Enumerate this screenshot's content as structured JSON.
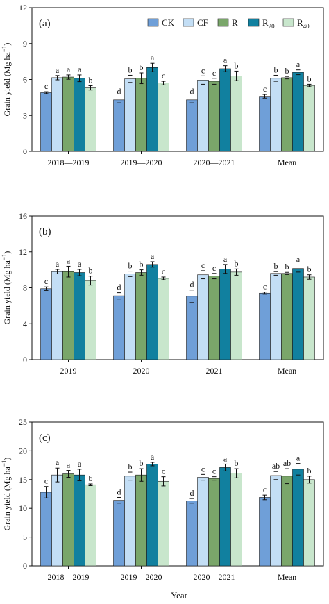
{
  "legend": [
    {
      "label": "CK",
      "sub": "",
      "color": "#6f9fd8"
    },
    {
      "label": "CF",
      "sub": "",
      "color": "#c3def5"
    },
    {
      "label": "R",
      "sub": "",
      "color": "#7aa66a"
    },
    {
      "label": "R",
      "sub": "20",
      "color": "#11809f"
    },
    {
      "label": "R",
      "sub": "40",
      "color": "#c8e6cc"
    }
  ],
  "x_axis_title": "Year",
  "chart_data": [
    {
      "type": "bar",
      "panel_label": "(a)",
      "ylabel": "Grain yield",
      "ylabel_unit": "(Mg ha",
      "ylabel_exp": "−1",
      "ylabel_close": ")",
      "ylim": [
        0,
        12
      ],
      "yticks": [
        0,
        3,
        6,
        9,
        12
      ],
      "categories": [
        "2018—2019",
        "2019—2020",
        "2020—2021",
        "Mean"
      ],
      "series": [
        {
          "name": "CK",
          "values": [
            4.9,
            4.3,
            4.3,
            4.6
          ],
          "errors": [
            0.08,
            0.25,
            0.25,
            0.15
          ],
          "letters": [
            "c",
            "d",
            "d",
            "c"
          ]
        },
        {
          "name": "CF",
          "values": [
            6.15,
            6.05,
            5.95,
            6.1
          ],
          "errors": [
            0.18,
            0.3,
            0.35,
            0.25
          ],
          "letters": [
            "a",
            "b",
            "c",
            "b"
          ]
        },
        {
          "name": "R",
          "values": [
            6.2,
            6.1,
            5.85,
            6.15
          ],
          "errors": [
            0.18,
            0.45,
            0.25,
            0.1
          ],
          "letters": [
            "a",
            "b",
            "c",
            "b"
          ]
        },
        {
          "name": "R20",
          "values": [
            6.1,
            7.0,
            6.9,
            6.6
          ],
          "errors": [
            0.28,
            0.35,
            0.25,
            0.2
          ],
          "letters": [
            "a",
            "a",
            "a",
            "a"
          ]
        },
        {
          "name": "R40",
          "values": [
            5.3,
            5.7,
            6.3,
            5.5
          ],
          "errors": [
            0.18,
            0.15,
            0.4,
            0.1
          ],
          "letters": [
            "b",
            "c",
            "b",
            "b"
          ]
        }
      ]
    },
    {
      "type": "bar",
      "panel_label": "(b)",
      "ylabel": "Grain yield",
      "ylabel_unit": "(Mg ha",
      "ylabel_exp": "−1",
      "ylabel_close": ")",
      "ylim": [
        0,
        16
      ],
      "yticks": [
        0,
        4,
        8,
        12,
        16
      ],
      "categories": [
        "2019",
        "2020",
        "2021",
        "Mean"
      ],
      "series": [
        {
          "name": "CK",
          "values": [
            7.9,
            7.1,
            7.05,
            7.4
          ],
          "errors": [
            0.2,
            0.35,
            0.7,
            0.12
          ],
          "letters": [
            "c",
            "d",
            "d",
            "c"
          ]
        },
        {
          "name": "CF",
          "values": [
            9.8,
            9.55,
            9.45,
            9.6
          ],
          "errors": [
            0.25,
            0.3,
            0.45,
            0.2
          ],
          "letters": [
            "a",
            "b",
            "c",
            "b"
          ]
        },
        {
          "name": "R",
          "values": [
            9.8,
            9.7,
            9.3,
            9.6
          ],
          "errors": [
            0.6,
            0.3,
            0.3,
            0.12
          ],
          "letters": [
            "a",
            "b",
            "c",
            "b"
          ]
        },
        {
          "name": "R20",
          "values": [
            9.7,
            10.6,
            10.1,
            10.15
          ],
          "errors": [
            0.35,
            0.3,
            0.5,
            0.4
          ],
          "letters": [
            "a",
            "a",
            "a",
            "a"
          ]
        },
        {
          "name": "R40",
          "values": [
            8.8,
            9.05,
            9.75,
            9.2
          ],
          "errors": [
            0.5,
            0.15,
            0.35,
            0.25
          ],
          "letters": [
            "b",
            "c",
            "b",
            "b"
          ]
        }
      ]
    },
    {
      "type": "bar",
      "panel_label": "(c)",
      "ylabel": "Grain yield",
      "ylabel_unit": "(Mg ha",
      "ylabel_exp": "−1",
      "ylabel_close": ")",
      "ylim": [
        0,
        25
      ],
      "yticks": [
        0,
        5,
        10,
        15,
        20,
        25
      ],
      "categories": [
        "2018—2019",
        "2019—2020",
        "2020—2021",
        "Mean"
      ],
      "series": [
        {
          "name": "CK",
          "values": [
            12.8,
            11.4,
            11.3,
            11.9
          ],
          "errors": [
            1.0,
            0.5,
            0.4,
            0.4
          ],
          "letters": [
            "c",
            "d",
            "d",
            "c"
          ]
        },
        {
          "name": "CF",
          "values": [
            15.8,
            15.6,
            15.4,
            15.7
          ],
          "errors": [
            1.2,
            0.7,
            0.5,
            0.7
          ],
          "letters": [
            "a",
            "b",
            "c",
            "ab"
          ]
        },
        {
          "name": "R",
          "values": [
            16.0,
            15.8,
            15.2,
            15.6
          ],
          "errors": [
            0.6,
            1.1,
            0.3,
            1.3
          ],
          "letters": [
            "a",
            "b",
            "c",
            "ab"
          ]
        },
        {
          "name": "R20",
          "values": [
            15.8,
            17.7,
            17.1,
            16.8
          ],
          "errors": [
            1.0,
            0.3,
            0.6,
            1.0
          ],
          "letters": [
            "a",
            "a",
            "a",
            "a"
          ]
        },
        {
          "name": "R40",
          "values": [
            14.1,
            14.7,
            16.1,
            15.0
          ],
          "errors": [
            0.15,
            0.8,
            0.8,
            0.6
          ],
          "letters": [
            "b",
            "c",
            "b",
            "b"
          ]
        }
      ]
    }
  ]
}
